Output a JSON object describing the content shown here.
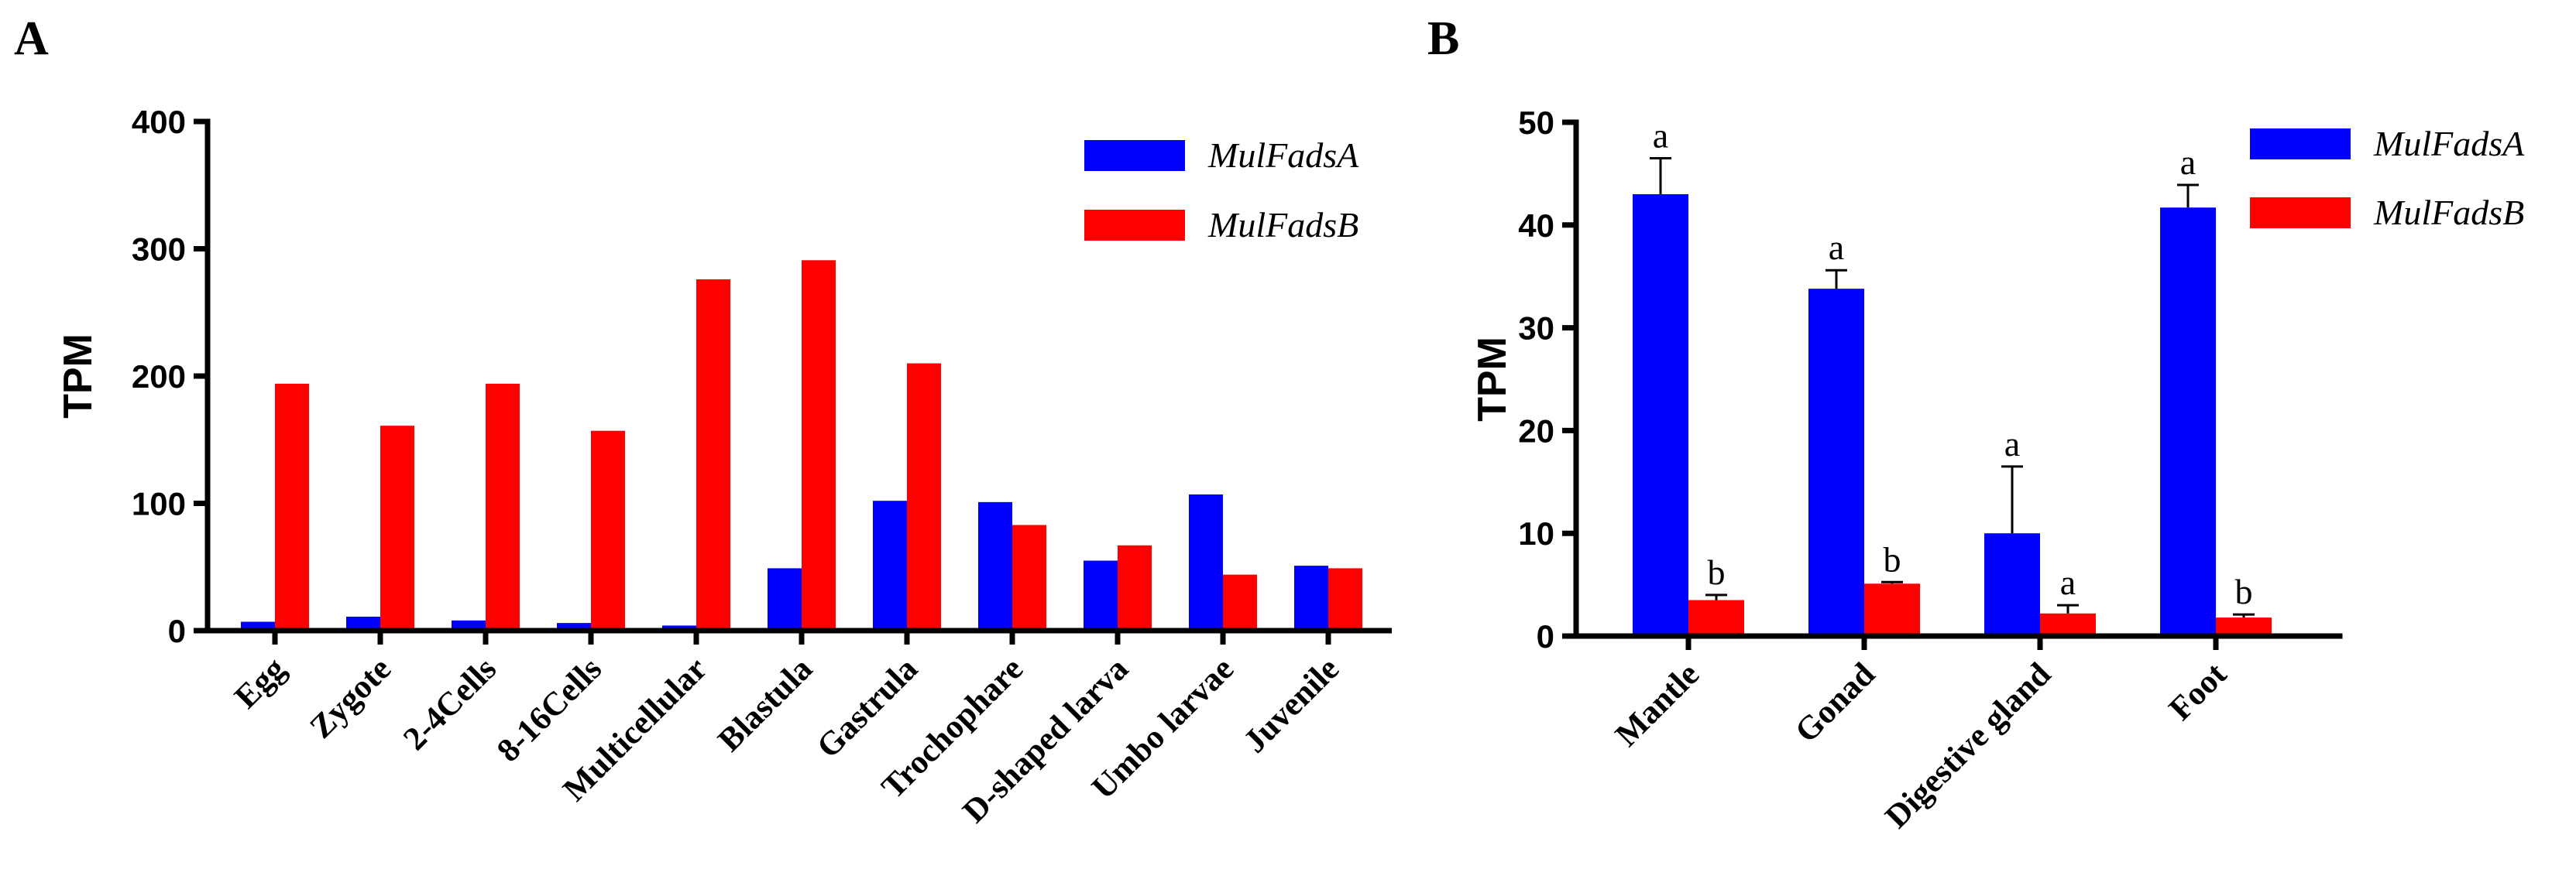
{
  "chart_data": [
    {
      "panel": "A",
      "type": "bar",
      "ylabel": "TPM",
      "xlabel": "",
      "ylim": [
        0,
        400
      ],
      "yticks": [
        "0",
        "100",
        "200",
        "300",
        "400"
      ],
      "categories": [
        "Egg",
        "Zygote",
        "2-4Cells",
        "8-16Cells",
        "Multicellular",
        "Blastula",
        "Gastrula",
        "Trochophare",
        "D-shaped larva",
        "Umbo larvae",
        "Juvenile"
      ],
      "series": [
        {
          "name": "MulFadsA",
          "color": "#0000ff",
          "values": [
            7,
            11,
            8,
            6,
            4,
            49,
            102,
            101,
            55,
            107,
            51
          ]
        },
        {
          "name": "MulFadsB",
          "color": "#ff0000",
          "values": [
            194,
            161,
            194,
            157,
            276,
            291,
            210,
            83,
            67,
            44,
            49
          ]
        }
      ],
      "legend_position": "top-right"
    },
    {
      "panel": "B",
      "type": "bar",
      "ylabel": "TPM",
      "xlabel": "",
      "ylim": [
        0,
        50
      ],
      "yticks": [
        "0",
        "10",
        "20",
        "30",
        "40",
        "50"
      ],
      "categories": [
        "Mantle",
        "Gonad",
        "Digestive gland",
        "Foot"
      ],
      "series": [
        {
          "name": "MulFadsA",
          "color": "#0000ff",
          "values": [
            43,
            33.8,
            10,
            41.7
          ],
          "errors": [
            3.5,
            1.8,
            6.5,
            2.2
          ],
          "significance": [
            "a",
            "a",
            "a",
            "a"
          ]
        },
        {
          "name": "MulFadsB",
          "color": "#ff0000",
          "values": [
            3.5,
            5.1,
            2.2,
            1.8
          ],
          "errors": [
            0.5,
            0.15,
            0.8,
            0.3
          ],
          "significance": [
            "b",
            "b",
            "a",
            "b"
          ]
        }
      ],
      "legend_position": "top-right"
    }
  ]
}
